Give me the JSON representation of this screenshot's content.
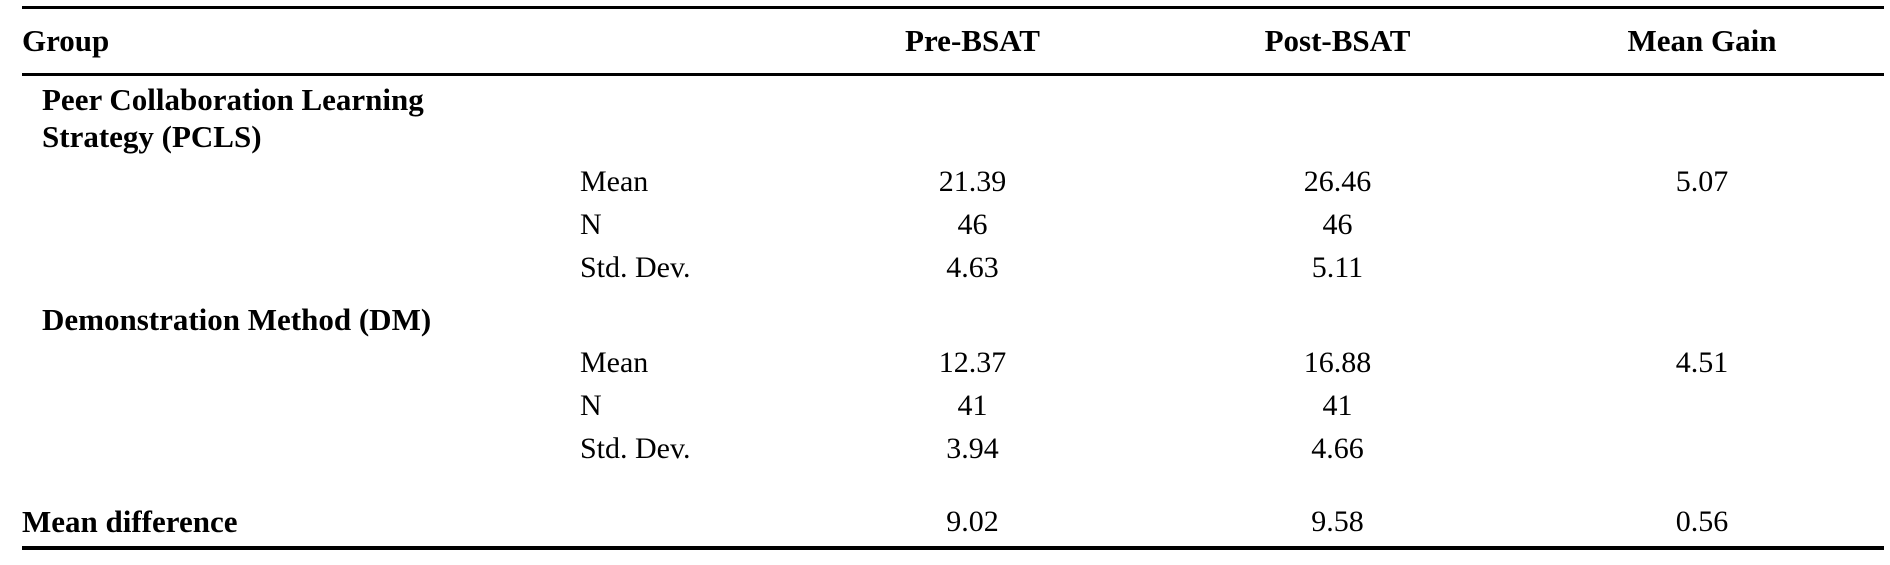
{
  "page": {
    "background_color": "#ffffff",
    "text_color": "#000000"
  },
  "table": {
    "header": {
      "group": "Group",
      "pre_bsat": "Pre-BSAT",
      "post_bsat": "Post-BSAT",
      "mean_gain": "Mean Gain"
    },
    "groups": [
      {
        "name": "Peer Collaboration Learning Strategy (PCLS)",
        "rows": [
          {
            "label": "Mean",
            "pre": "21.39",
            "post": "26.46",
            "gain": "5.07"
          },
          {
            "label": "N",
            "pre": "46",
            "post": "46",
            "gain": ""
          },
          {
            "label": "Std. Dev.",
            "pre": "4.63",
            "post": "5.11",
            "gain": ""
          }
        ]
      },
      {
        "name": "Demonstration Method (DM)",
        "rows": [
          {
            "label": "Mean",
            "pre": "12.37",
            "post": "16.88",
            "gain": "4.51"
          },
          {
            "label": "N",
            "pre": "41",
            "post": "41",
            "gain": ""
          },
          {
            "label": "Std. Dev.",
            "pre": "3.94",
            "post": "4.66",
            "gain": ""
          }
        ]
      }
    ],
    "summary": {
      "label": "Mean difference",
      "pre": "9.02",
      "post": "9.58",
      "gain": "0.56"
    }
  }
}
